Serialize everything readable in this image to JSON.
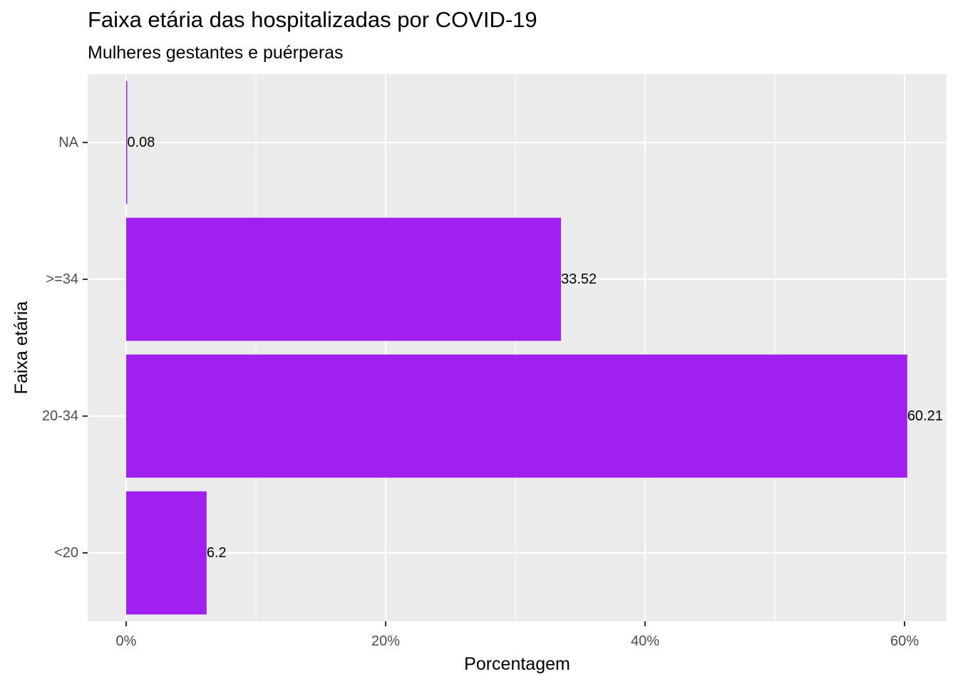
{
  "chart_data": {
    "type": "bar",
    "orientation": "horizontal",
    "title": "Faixa etária das hospitalizadas por COVID-19",
    "subtitle": "Mulheres gestantes e puérperas",
    "xlabel": "Porcentagem",
    "ylabel": "Faixa etária",
    "categories": [
      "<20",
      "20-34",
      ">=34",
      "NA"
    ],
    "values": [
      6.2,
      60.21,
      33.52,
      0.08
    ],
    "data_labels": [
      "6.2",
      "60.21",
      "33.52",
      "0.08"
    ],
    "x_ticks": [
      0,
      20,
      40,
      60
    ],
    "x_tick_labels": [
      "0%",
      "20%",
      "40%",
      "60%"
    ],
    "xlim": [
      -3.01,
      63.22
    ],
    "grid": true,
    "bar_color": "#A020F0",
    "panel_background": "#EBEBEB",
    "gridline_color": "#FFFFFF",
    "legend": "none"
  }
}
